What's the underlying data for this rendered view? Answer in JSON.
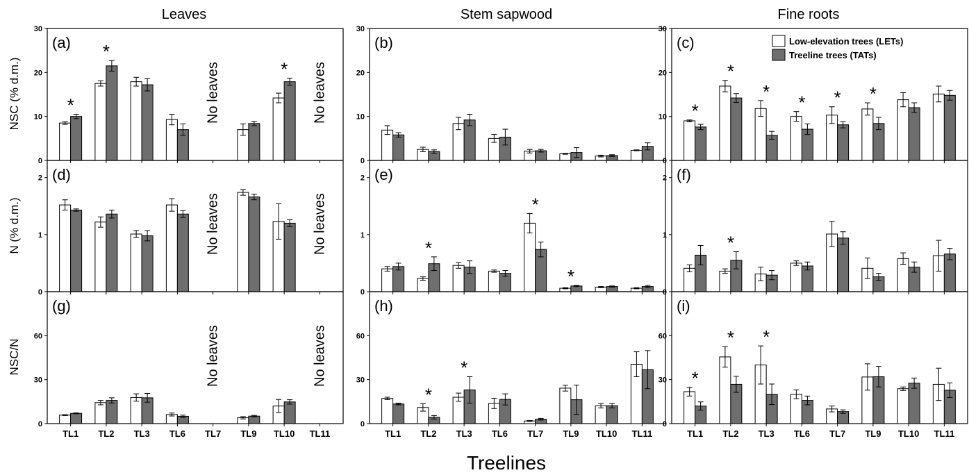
{
  "figure": {
    "column_titles": [
      "Leaves",
      "Stem sapwood",
      "Fine roots"
    ],
    "row_ylabels": [
      "NSC (% d.m.)",
      "N (% d.m.)",
      "NSC/N"
    ],
    "xlabel": "Treelines",
    "no_leaves_text": "No leaves",
    "colors": {
      "let_fill": "#ffffff",
      "tat_fill": "#6e6e6e",
      "axis": "#000000"
    }
  },
  "legend": {
    "items": [
      {
        "label": "Low-elevation trees (LETs)",
        "color": "#ffffff"
      },
      {
        "label": "Treeline trees (TATs)",
        "color": "#6e6e6e"
      }
    ],
    "location": "top-right of panel (c)"
  },
  "chart_data": [
    {
      "panel": "(a)",
      "type": "bar",
      "categories": [
        "TL1",
        "TL2",
        "TL3",
        "TL6",
        "TL7",
        "TL9",
        "TL10",
        "TL11"
      ],
      "ylim": [
        0,
        30
      ],
      "yticks": [
        0,
        10,
        20,
        30
      ],
      "series": [
        {
          "name": "Low-elevation trees (LETs)",
          "values": [
            8.5,
            17.5,
            17.9,
            9.3,
            null,
            7.0,
            14.2,
            null
          ],
          "err": [
            0.3,
            0.6,
            1.0,
            1.2,
            null,
            1.3,
            1.1,
            null
          ]
        },
        {
          "name": "Treeline trees (TATs)",
          "values": [
            10.0,
            21.5,
            17.2,
            7.0,
            null,
            8.4,
            17.9,
            null
          ],
          "err": [
            0.5,
            1.2,
            1.4,
            1.3,
            null,
            0.5,
            0.8,
            null
          ]
        }
      ],
      "significant": [
        "TL1",
        "TL2",
        "TL10"
      ],
      "no_leaves": [
        "TL7",
        "TL11"
      ]
    },
    {
      "panel": "(b)",
      "type": "bar",
      "categories": [
        "TL1",
        "TL2",
        "TL3",
        "TL6",
        "TL7",
        "TL9",
        "TL10",
        "TL11"
      ],
      "ylim": [
        0,
        30
      ],
      "yticks": [
        0,
        10,
        20,
        30
      ],
      "series": [
        {
          "name": "Low-elevation trees (LETs)",
          "values": [
            6.9,
            2.5,
            8.4,
            5.0,
            2.1,
            1.5,
            1.0,
            2.3
          ],
          "err": [
            1.0,
            0.5,
            1.4,
            0.9,
            0.4,
            0.1,
            0.2,
            0.1
          ]
        },
        {
          "name": "Treeline trees (TATs)",
          "values": [
            5.8,
            2.0,
            9.2,
            5.3,
            2.2,
            1.8,
            1.1,
            3.2
          ],
          "err": [
            0.5,
            0.4,
            1.3,
            1.8,
            0.3,
            1.1,
            0.2,
            0.8
          ]
        }
      ],
      "significant": [],
      "no_leaves": []
    },
    {
      "panel": "(c)",
      "type": "bar",
      "categories": [
        "TL1",
        "TL2",
        "TL3",
        "TL6",
        "TL7",
        "TL9",
        "TL10",
        "TL11"
      ],
      "ylim": [
        0,
        30
      ],
      "yticks": [
        0,
        10,
        20,
        30
      ],
      "series": [
        {
          "name": "Low-elevation trees (LETs)",
          "values": [
            9.0,
            16.9,
            11.8,
            10.0,
            10.3,
            11.7,
            13.8,
            15.1
          ],
          "err": [
            0.2,
            1.3,
            1.8,
            1.1,
            1.9,
            1.4,
            1.6,
            1.8
          ]
        },
        {
          "name": "Treeline trees (TATs)",
          "values": [
            7.6,
            14.2,
            5.7,
            7.1,
            8.1,
            8.4,
            12.0,
            14.8
          ],
          "err": [
            0.6,
            1.0,
            0.9,
            1.2,
            0.7,
            1.4,
            1.1,
            1.1
          ]
        }
      ],
      "significant": [
        "TL1",
        "TL2",
        "TL3",
        "TL6",
        "TL7",
        "TL9"
      ],
      "no_leaves": []
    },
    {
      "panel": "(d)",
      "type": "bar",
      "categories": [
        "TL1",
        "TL2",
        "TL3",
        "TL6",
        "TL7",
        "TL9",
        "TL10",
        "TL11"
      ],
      "ylim": [
        0,
        2.3
      ],
      "yticks": [
        0,
        1,
        2
      ],
      "series": [
        {
          "name": "Low-elevation trees (LETs)",
          "values": [
            1.52,
            1.22,
            1.01,
            1.52,
            null,
            1.74,
            1.23,
            null
          ],
          "err": [
            0.09,
            0.09,
            0.06,
            0.11,
            null,
            0.05,
            0.31,
            null
          ]
        },
        {
          "name": "Treeline trees (TATs)",
          "values": [
            1.43,
            1.36,
            0.98,
            1.36,
            null,
            1.66,
            1.2,
            null
          ],
          "err": [
            0.02,
            0.07,
            0.09,
            0.06,
            null,
            0.05,
            0.06,
            null
          ]
        }
      ],
      "significant": [],
      "no_leaves": [
        "TL7",
        "TL11"
      ]
    },
    {
      "panel": "(e)",
      "type": "bar",
      "categories": [
        "TL1",
        "TL2",
        "TL3",
        "TL6",
        "TL7",
        "TL9",
        "TL10",
        "TL11"
      ],
      "ylim": [
        0,
        2.3
      ],
      "yticks": [
        0,
        1,
        2
      ],
      "series": [
        {
          "name": "Low-elevation trees (LETs)",
          "values": [
            0.4,
            0.23,
            0.46,
            0.36,
            1.2,
            0.06,
            0.08,
            0.06
          ],
          "err": [
            0.04,
            0.03,
            0.05,
            0.02,
            0.17,
            0.01,
            0.01,
            0.01
          ]
        },
        {
          "name": "Treeline trees (TATs)",
          "values": [
            0.44,
            0.49,
            0.43,
            0.32,
            0.74,
            0.1,
            0.09,
            0.09
          ],
          "err": [
            0.06,
            0.12,
            0.11,
            0.05,
            0.13,
            0.01,
            0.01,
            0.02
          ]
        }
      ],
      "significant": [
        "TL2",
        "TL7",
        "TL9"
      ],
      "no_leaves": []
    },
    {
      "panel": "(f)",
      "type": "bar",
      "categories": [
        "TL1",
        "TL2",
        "TL3",
        "TL6",
        "TL7",
        "TL9",
        "TL10",
        "TL11"
      ],
      "ylim": [
        0,
        2.3
      ],
      "yticks": [
        0,
        1,
        2
      ],
      "series": [
        {
          "name": "Low-elevation trees (LETs)",
          "values": [
            0.41,
            0.36,
            0.31,
            0.5,
            1.01,
            0.41,
            0.58,
            0.63
          ],
          "err": [
            0.06,
            0.04,
            0.12,
            0.04,
            0.22,
            0.18,
            0.1,
            0.27
          ]
        },
        {
          "name": "Treeline trees (TATs)",
          "values": [
            0.64,
            0.55,
            0.29,
            0.45,
            0.94,
            0.26,
            0.43,
            0.66
          ],
          "err": [
            0.17,
            0.15,
            0.08,
            0.07,
            0.11,
            0.06,
            0.09,
            0.1
          ]
        }
      ],
      "significant": [
        "TL2"
      ],
      "no_leaves": []
    },
    {
      "panel": "(g)",
      "type": "bar",
      "categories": [
        "TL1",
        "TL2",
        "TL3",
        "TL6",
        "TL7",
        "TL9",
        "TL10",
        "TL11"
      ],
      "ylim": [
        0,
        90
      ],
      "yticks": [
        0,
        30,
        60
      ],
      "series": [
        {
          "name": "Low-elevation trees (LETs)",
          "values": [
            5.8,
            14.3,
            17.8,
            6.2,
            null,
            4.0,
            12.0,
            null
          ],
          "err": [
            0.3,
            1.5,
            2.5,
            1.0,
            null,
            0.8,
            4.5,
            null
          ]
        },
        {
          "name": "Treeline trees (TATs)",
          "values": [
            7.0,
            15.8,
            17.6,
            5.0,
            null,
            5.1,
            14.8,
            null
          ],
          "err": [
            0.3,
            1.8,
            3.0,
            0.8,
            null,
            0.5,
            1.5,
            null
          ]
        }
      ],
      "significant": [],
      "no_leaves": [
        "TL7",
        "TL11"
      ]
    },
    {
      "panel": "(h)",
      "type": "bar",
      "categories": [
        "TL1",
        "TL2",
        "TL3",
        "TL6",
        "TL7",
        "TL9",
        "TL10",
        "TL11"
      ],
      "ylim": [
        0,
        90
      ],
      "yticks": [
        0,
        30,
        60
      ],
      "series": [
        {
          "name": "Low-elevation trees (LETs)",
          "values": [
            17.2,
            11.0,
            18.0,
            13.8,
            1.8,
            24.2,
            12.2,
            40.5
          ],
          "err": [
            0.8,
            2.5,
            2.8,
            3.5,
            0.3,
            2.0,
            1.5,
            8.5
          ]
        },
        {
          "name": "Treeline trees (TATs)",
          "values": [
            13.4,
            4.3,
            23.0,
            16.5,
            3.0,
            16.3,
            12.2,
            36.8
          ],
          "err": [
            0.6,
            1.2,
            9.0,
            3.8,
            0.6,
            10.0,
            1.5,
            13.0
          ]
        }
      ],
      "significant": [
        "TL2",
        "TL3"
      ],
      "no_leaves": []
    },
    {
      "panel": "(i)",
      "type": "bar",
      "categories": [
        "TL1",
        "TL2",
        "TL3",
        "TL6",
        "TL7",
        "TL9",
        "TL10",
        "TL11"
      ],
      "ylim": [
        0,
        90
      ],
      "yticks": [
        0,
        30,
        60
      ],
      "series": [
        {
          "name": "Low-elevation trees (LETs)",
          "values": [
            21.8,
            45.5,
            40.0,
            20.0,
            10.0,
            31.8,
            23.8,
            26.8
          ],
          "err": [
            3.0,
            7.0,
            13.0,
            3.0,
            2.0,
            9.0,
            1.2,
            11.0
          ]
        },
        {
          "name": "Treeline trees (TATs)",
          "values": [
            12.0,
            26.8,
            20.0,
            15.8,
            8.2,
            32.0,
            27.6,
            22.8
          ],
          "err": [
            2.8,
            5.5,
            7.0,
            3.0,
            1.2,
            7.0,
            3.5,
            5.0
          ]
        }
      ],
      "significant": [
        "TL1",
        "TL2",
        "TL3"
      ],
      "no_leaves": []
    }
  ]
}
